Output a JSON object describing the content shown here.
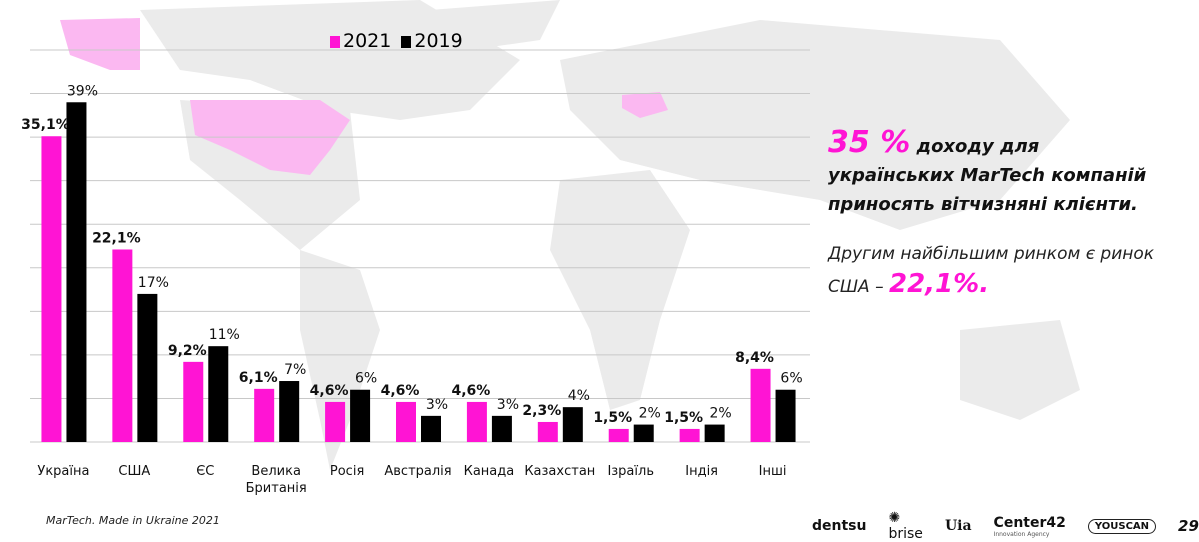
{
  "chart_data": {
    "type": "bar",
    "categories": [
      "Україна",
      "США",
      "ЄС",
      "Велика Британія",
      "Росія",
      "Австралія",
      "Канада",
      "Казахстан",
      "Ізраїль",
      "Індія",
      "Інші"
    ],
    "series": [
      {
        "name": "2021",
        "color": "#ff14d4",
        "values": [
          35.1,
          22.1,
          9.2,
          6.1,
          4.6,
          4.6,
          4.6,
          2.3,
          1.5,
          1.5,
          8.4
        ],
        "labels": [
          "35,1%",
          "22,1%",
          "9,2%",
          "6,1%",
          "4,6%",
          "4,6%",
          "4,6%",
          "2,3%",
          "1,5%",
          "1,5%",
          "8,4%"
        ]
      },
      {
        "name": "2019",
        "color": "#000000",
        "values": [
          39,
          17,
          11,
          7,
          6,
          3,
          3,
          4,
          2,
          2,
          6
        ],
        "labels": [
          "39%",
          "17%",
          "11%",
          "7%",
          "6%",
          "3%",
          "3%",
          "4%",
          "2%",
          "2%",
          "6%"
        ]
      }
    ],
    "ylim": [
      0,
      45
    ],
    "grid": true,
    "legend": "top"
  },
  "side": {
    "headline_big": "35 %",
    "headline_rest_1": " доходу для",
    "headline_rest_2": "українських MarTech компаній приносять вітчизняні клієнти.",
    "sub_text": "Другим найбільшим ринком є ринок США – ",
    "sub_big": "22,1%."
  },
  "footer": {
    "source": "MarTech. Made in Ukraine 2021",
    "page": "29"
  },
  "logos": {
    "dentsu": "dentsu",
    "brise": "brise",
    "uia": "Uia",
    "center42": "Center42",
    "center42_sub": "Innovation Agency",
    "youscan": "YOUSCAN"
  }
}
